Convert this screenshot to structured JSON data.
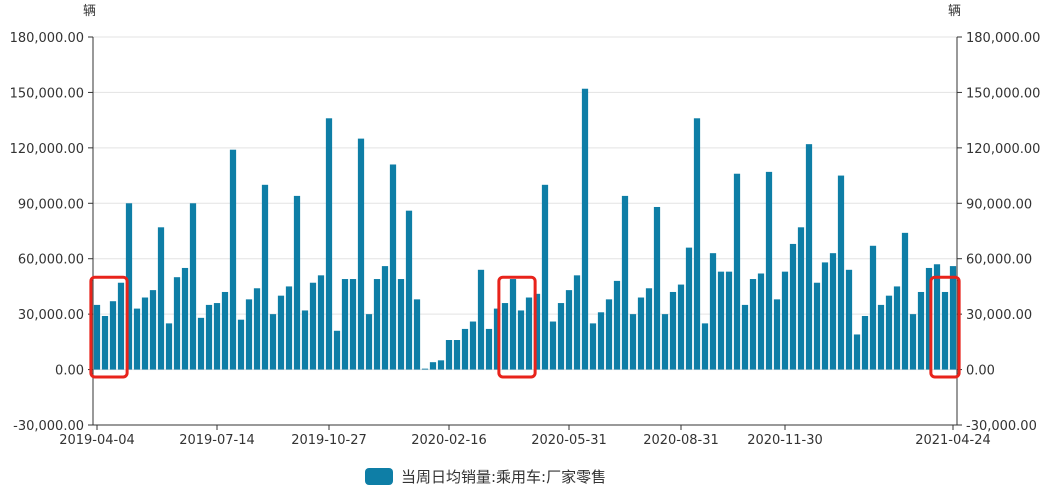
{
  "chart_data": {
    "type": "bar",
    "left_unit": "辆",
    "right_unit": "辆",
    "ylim": [
      -30000,
      180000
    ],
    "y_ticks": [
      {
        "value": 180000,
        "label": "180,000.00"
      },
      {
        "value": 150000,
        "label": "150,000.00"
      },
      {
        "value": 120000,
        "label": "120,000.00"
      },
      {
        "value": 90000,
        "label": "90,000.00"
      },
      {
        "value": 60000,
        "label": "60,000.00"
      },
      {
        "value": 30000,
        "label": "30,000.00"
      },
      {
        "value": 0,
        "label": "0.00"
      },
      {
        "value": -30000,
        "label": "-30,000.00"
      }
    ],
    "x_ticks": [
      {
        "index": 0,
        "label": "2019-04-04"
      },
      {
        "index": 15,
        "label": "2019-07-14"
      },
      {
        "index": 29,
        "label": "2019-10-27"
      },
      {
        "index": 44,
        "label": "2020-02-16"
      },
      {
        "index": 59,
        "label": "2020-05-31"
      },
      {
        "index": 73,
        "label": "2020-08-31"
      },
      {
        "index": 86,
        "label": "2020-11-30"
      },
      {
        "index": 107,
        "label": "2021-04-24"
      }
    ],
    "legend": {
      "position": "bottom-center",
      "label": "当周日均销量:乘用车:厂家零售",
      "color": "#0e7ea6"
    },
    "bar_color": "#0e7ea6",
    "highlight_color": "#e8231b",
    "highlights": [
      {
        "from_index": 0,
        "to_index": 3
      },
      {
        "from_index": 51,
        "to_index": 54
      },
      {
        "from_index": 105,
        "to_index": 107
      }
    ],
    "series": [
      {
        "values": [
          35000,
          29000,
          37000,
          47000,
          90000,
          33000,
          39000,
          43000,
          77000,
          25000,
          50000,
          55000,
          90000,
          28000,
          35000,
          36000,
          42000,
          119000,
          27000,
          38000,
          44000,
          100000,
          30000,
          40000,
          45000,
          94000,
          32000,
          47000,
          51000,
          136000,
          21000,
          49000,
          49000,
          125000,
          30000,
          49000,
          56000,
          111000,
          49000,
          86000,
          38000,
          500,
          4000,
          5000,
          16000,
          16000,
          22000,
          26000,
          54000,
          22000,
          33000,
          36000,
          49000,
          32000,
          39000,
          41000,
          100000,
          26000,
          36000,
          43000,
          51000,
          152000,
          25000,
          31000,
          38000,
          48000,
          94000,
          30000,
          39000,
          44000,
          88000,
          30000,
          42000,
          46000,
          66000,
          136000,
          25000,
          63000,
          53000,
          53000,
          106000,
          35000,
          49000,
          52000,
          107000,
          38000,
          53000,
          68000,
          77000,
          122000,
          47000,
          58000,
          63000,
          105000,
          54000,
          19000,
          29000,
          67000,
          35000,
          40000,
          45000,
          74000,
          30000,
          42000,
          55000,
          57000,
          42000,
          56000
        ]
      }
    ]
  }
}
